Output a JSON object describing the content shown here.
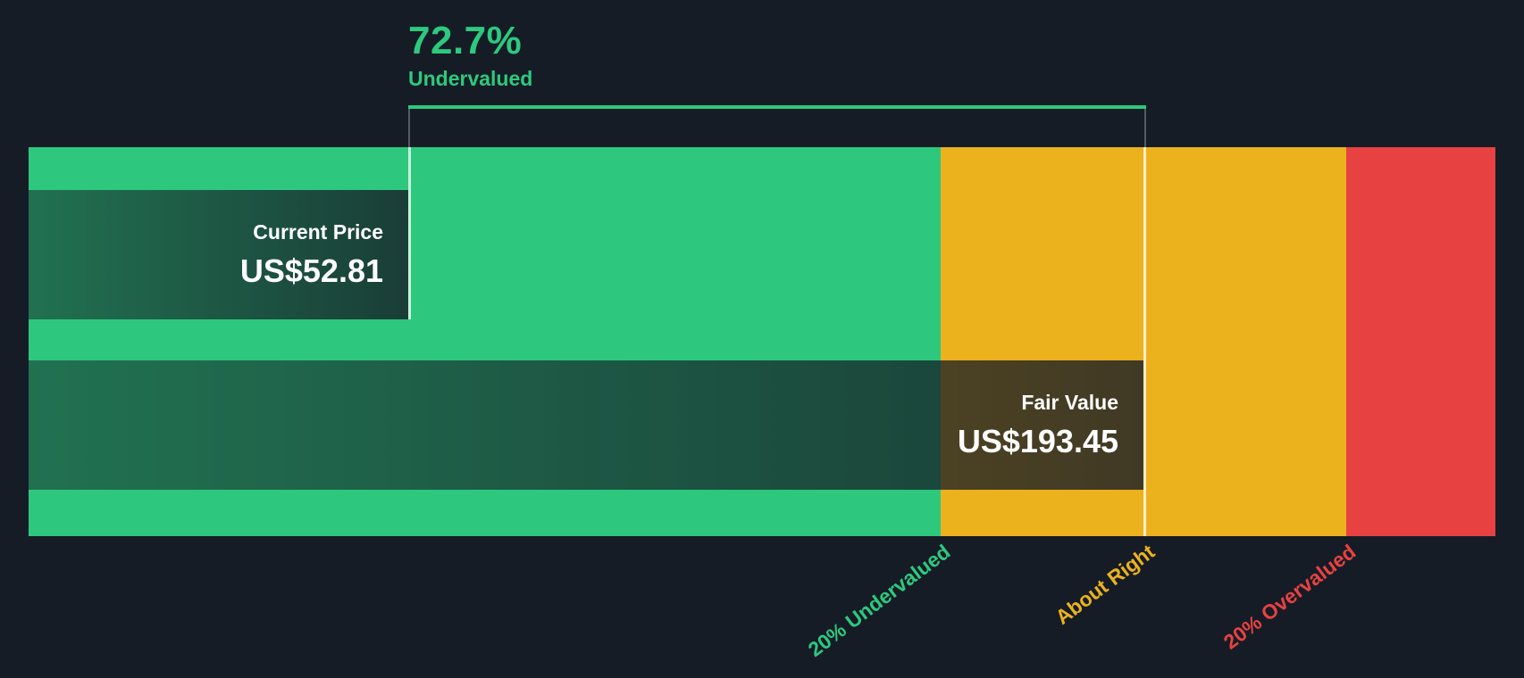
{
  "chart_data": {
    "type": "bar",
    "subtype": "fair-value-gauge",
    "annotation": {
      "percent": "72.7%",
      "label": "Undervalued"
    },
    "current_price": {
      "label": "Current Price",
      "value": "US$52.81"
    },
    "fair_value": {
      "label": "Fair Value",
      "value": "US$193.45"
    },
    "zones": [
      {
        "label": "20% Undervalued",
        "color": "#2dc97e"
      },
      {
        "label": "About Right",
        "color": "#ecb21e"
      },
      {
        "label": "20% Overvalued",
        "color": "#e74241"
      }
    ],
    "colors": {
      "background": "#161c26",
      "undervalued_zone": "#2dc87e",
      "about_right_zone": "#ecb21e",
      "overvalued_zone": "#e74241",
      "annotation_text": "#2dc97e",
      "price_text": "#ffffff",
      "price_box_overlay": "rgba(21,27,37,0.5-0.8)"
    },
    "layout_hints": {
      "zone_width_fractions": [
        0.622,
        0.276,
        0.102
      ],
      "current_price_marker_fraction": 0.259,
      "fair_value_marker_fraction": 0.76,
      "axis_label_rotation_deg": -37,
      "legend": "none",
      "grid": "off"
    }
  }
}
